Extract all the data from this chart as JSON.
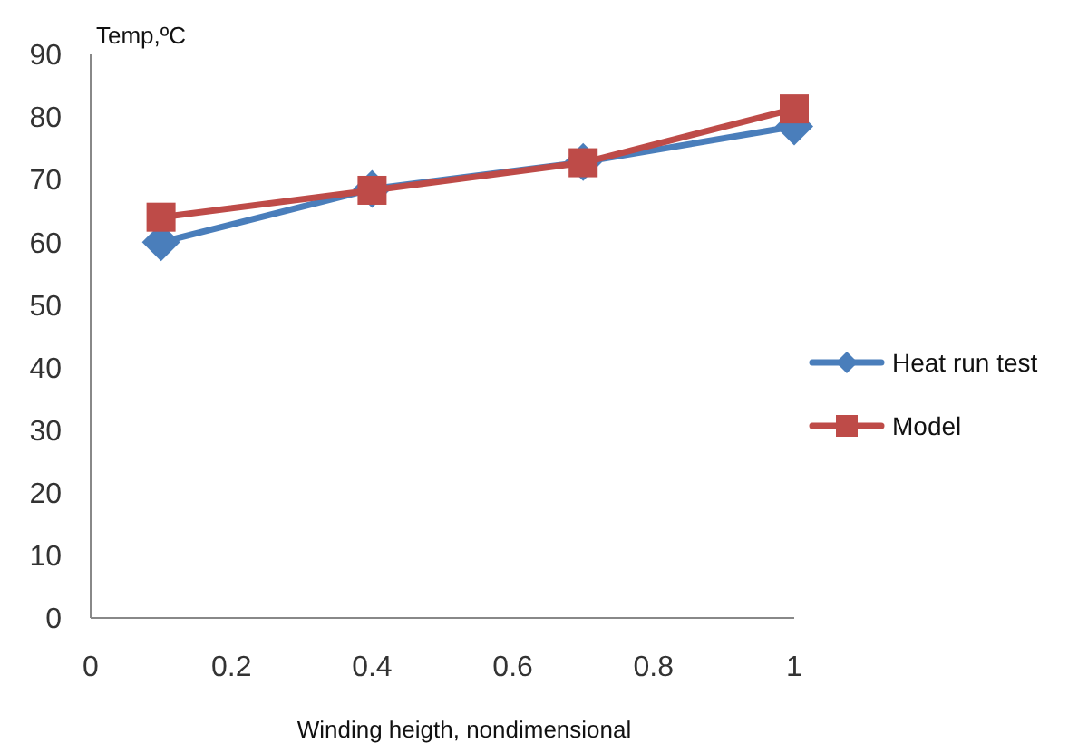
{
  "chart_data": {
    "type": "line",
    "xlabel": "Winding heigth, nondimensional",
    "ylabel": "Temp,ºC",
    "x": [
      0.1,
      0.4,
      0.7,
      1
    ],
    "series": [
      {
        "name": "Heat run test",
        "color": "#4a7ebb",
        "values": [
          60,
          68.5,
          72.8,
          78.5
        ],
        "marker": "diamond"
      },
      {
        "name": "Model",
        "color": "#be4b48",
        "values": [
          64,
          68.3,
          72.7,
          81.3
        ],
        "marker": "square"
      }
    ],
    "xlim": [
      0,
      1
    ],
    "xticks": [
      0,
      0.2,
      0.4,
      0.6,
      0.8,
      1
    ],
    "ylim": [
      0,
      90
    ],
    "yticks": [
      0,
      10,
      20,
      30,
      40,
      50,
      60,
      70,
      80,
      90
    ],
    "grid": false,
    "legend": "right",
    "line_style": "solid"
  }
}
